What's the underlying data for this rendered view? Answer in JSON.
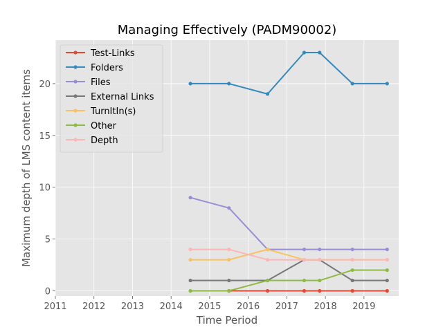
{
  "chart_data": {
    "type": "line",
    "title": "Managing Effectively (PADM90002)",
    "xlabel": "Time Period",
    "ylabel": "Maximum depth of LMS content items",
    "xlim": [
      2011,
      2019.9
    ],
    "ylim": [
      -0.5,
      24.2
    ],
    "xticks": [
      2011,
      2012,
      2013,
      2014,
      2015,
      2016,
      2017,
      2018,
      2019
    ],
    "yticks": [
      0,
      5,
      10,
      15,
      20
    ],
    "grid": true,
    "legend_position": "upper-left",
    "x": [
      2014.5,
      2015.5,
      2016.5,
      2017.45,
      2017.85,
      2018.7,
      2019.6
    ],
    "series": [
      {
        "name": "Test-Links",
        "color": "#E24A33",
        "values": [
          null,
          0,
          0,
          0,
          0,
          0,
          0
        ]
      },
      {
        "name": "Folders",
        "color": "#348ABD",
        "values": [
          20,
          20,
          19,
          23,
          23,
          20,
          20
        ]
      },
      {
        "name": "Files",
        "color": "#988ED5",
        "values": [
          9,
          8,
          4,
          4,
          4,
          4,
          4
        ]
      },
      {
        "name": "External Links",
        "color": "#777777",
        "values": [
          1,
          1,
          1,
          3,
          3,
          1,
          1
        ]
      },
      {
        "name": "TurnItIn(s)",
        "color": "#FBC15E",
        "values": [
          3,
          3,
          4,
          3,
          3,
          3,
          3
        ]
      },
      {
        "name": "Other",
        "color": "#8EBA42",
        "values": [
          0,
          0,
          1,
          1,
          1,
          2,
          2
        ]
      },
      {
        "name": "Depth",
        "color": "#FFB5B8",
        "values": [
          4,
          4,
          3,
          3,
          3,
          3,
          3
        ]
      }
    ]
  }
}
